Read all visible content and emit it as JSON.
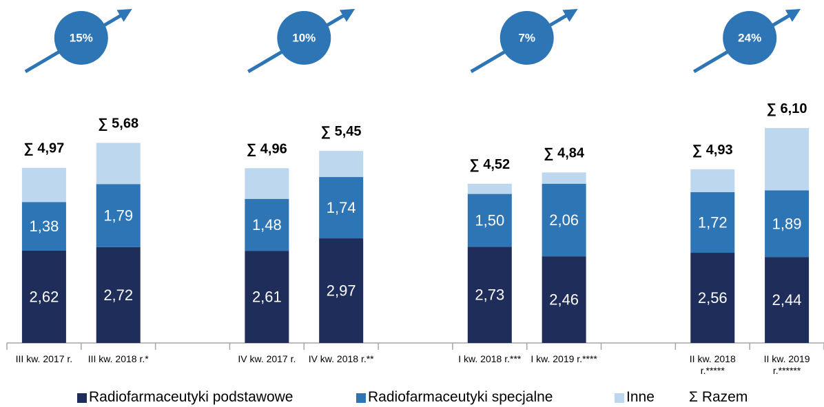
{
  "chart_data": {
    "type": "stacked_bar",
    "categories": [
      "III kw. 2017 r.",
      "III kw. 2018 r.*",
      null,
      "IV kw. 2017 r.",
      "IV kw. 2018 r.**",
      null,
      "I kw. 2018 r.***",
      "I kw. 2019 r.****",
      null,
      "II kw. 2018 r.*****",
      "II kw. 2019 r.******"
    ],
    "series": [
      {
        "name": "Radiofarmaceutyki podstawowe",
        "color": "#1f2d5a",
        "values": [
          2.62,
          2.72,
          null,
          2.61,
          2.97,
          null,
          2.73,
          2.46,
          null,
          2.56,
          2.44
        ],
        "value_labels": [
          "2,62",
          "2,72",
          null,
          "2,61",
          "2,97",
          null,
          "2,73",
          "2,46",
          null,
          "2,56",
          "2,44"
        ]
      },
      {
        "name": "Radiofarmaceutyki specjalne",
        "color": "#2e75b6",
        "values": [
          1.38,
          1.79,
          null,
          1.48,
          1.74,
          null,
          1.5,
          2.06,
          null,
          1.72,
          1.89
        ],
        "value_labels": [
          "1,38",
          "1,79",
          null,
          "1,48",
          "1,74",
          null,
          "1,50",
          "2,06",
          null,
          "1,72",
          "1,89"
        ]
      },
      {
        "name": "Inne",
        "color": "#bdd7ee",
        "values": [
          0.97,
          1.17,
          null,
          0.87,
          0.74,
          null,
          0.29,
          0.32,
          null,
          0.65,
          1.77
        ]
      }
    ],
    "totals": {
      "name": "Σ Razem",
      "values": [
        4.97,
        5.68,
        null,
        4.96,
        5.45,
        null,
        4.52,
        4.84,
        null,
        4.93,
        6.1
      ],
      "value_labels": [
        "∑ 4,97",
        "∑ 5,68",
        null,
        "∑ 4,96",
        "∑ 5,45",
        null,
        "∑ 4,52",
        "∑ 4,84",
        null,
        "∑ 4,93",
        "∑ 6,10"
      ]
    },
    "growth": {
      "color": "#2e75b6",
      "values": [
        15,
        10,
        7,
        24
      ],
      "value_labels": [
        "15%",
        "10%",
        "7%",
        "24%"
      ]
    },
    "ylim": [
      0,
      9.5
    ]
  }
}
